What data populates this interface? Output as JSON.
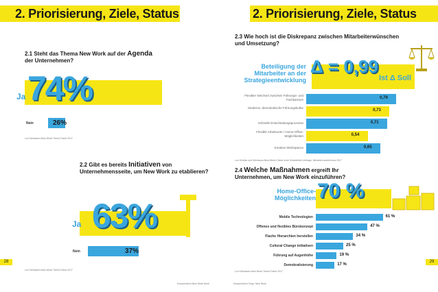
{
  "left_page": {
    "title": "2. Priorisierung, Ziele, Status",
    "q21_prefix": "2.1 Steht das Thema New Work auf der",
    "q21_emph": "Agenda",
    "q21_suffix": "der Unternehmen?",
    "q22_prefix": "2.2 Gibt es bereits",
    "q22_emph": "Initiativen",
    "q22_suffix": "von",
    "q22_line2": "Unternehmensseite, um New Work zu etablieren?",
    "source": "Lux Kienbaum-New-Work-Trend-Check 2017",
    "page_number": "28",
    "footer": "Kompendium New Work Work"
  },
  "right_page": {
    "title": "2. Priorisierung, Ziele, Status",
    "q23_line1": "2.3 Wie hoch ist die Diskrepanz zwischen Mitarbeiterwünschen",
    "q23_line2": "und Umsetzung?",
    "delta_label": "Δ = 0,99",
    "ist_soll": "Ist Δ Soll",
    "strategy_label_1": "Beteiligung der",
    "strategy_label_2": "Mitarbeiter an der",
    "strategy_label_3": "Strategieentwicklung",
    "q24_prefix": "2.4",
    "q24_emph": "Welche Maßnahmen",
    "q24_suffix": "ergreift Ihr",
    "q24_line2": "Unternehmen, um New Work einzuführen?",
    "ho_label_1": "Home-Office-",
    "ho_label_2": "Möglichkeiten",
    "ho_pct": "70 %",
    "source_23": "Lux Schüss und Kienbaum-New-Work-Check ohne Schwerfeld-Umfrage, Netzwerk-ansicht aus 2017",
    "source_24": "Lux Kienbaum-New-Work-Trend-Check 2017",
    "page_number": "29",
    "footer": "Kompendium Chap. New Work"
  },
  "chart_data": [
    {
      "type": "bar",
      "title": "2.1 Steht das Thema New Work auf der Agenda der Unternehmen?",
      "categories": [
        "Ja",
        "Nein"
      ],
      "values": [
        74,
        26
      ],
      "labels": [
        "74%",
        "26%"
      ],
      "unit": "%"
    },
    {
      "type": "bar",
      "title": "2.2 Gibt es bereits Initiativen von Unternehmensseite, um New Work zu etablieren?",
      "categories": [
        "Ja",
        "Nein"
      ],
      "values": [
        63,
        37
      ],
      "labels": [
        "63%",
        "37%"
      ],
      "unit": "%"
    },
    {
      "type": "bar",
      "orientation": "horizontal",
      "title": "2.3 Wie hoch ist die Diskrepanz zwischen Mitarbeiterwünschen und Umsetzung?",
      "categories": [
        "Flexibler Wechsel zwischen Führungs- und Fachkarriere",
        "Moderne, demokratische Führungskultur",
        "Schnelle Entscheidungsprozesse",
        "Flexible Arbeitsorte / Home-Office-Möglichkeiten",
        "Kreative Workspaces"
      ],
      "values": [
        0.79,
        0.73,
        0.71,
        0.54,
        0.65
      ],
      "labels": [
        "0,79",
        "0,73",
        "0,71",
        "0,54",
        "0,65"
      ],
      "colors": [
        "#3aa6de",
        "#f6e515",
        "#3aa6de",
        "#f6e515",
        "#3aa6de"
      ],
      "xlim": [
        0,
        1
      ]
    },
    {
      "type": "bar",
      "orientation": "horizontal",
      "title": "2.4 Welche Maßnahmen ergreift Ihr Unternehmen, um New Work einzuführen?",
      "categories": [
        "Mobile Technologien",
        "Offenes und flexibles Bürokonzept",
        "Flache Hierarchien herstellen",
        "Cultural Change initiativen",
        "Führung auf Augenhöhe",
        "Demokratisierung"
      ],
      "values": [
        61,
        47,
        34,
        25,
        19,
        17
      ],
      "labels": [
        "61 %",
        "47 %",
        "34 %",
        "25 %",
        "19 %",
        "17 %"
      ],
      "unit": "%",
      "xlim": [
        0,
        100
      ]
    }
  ]
}
